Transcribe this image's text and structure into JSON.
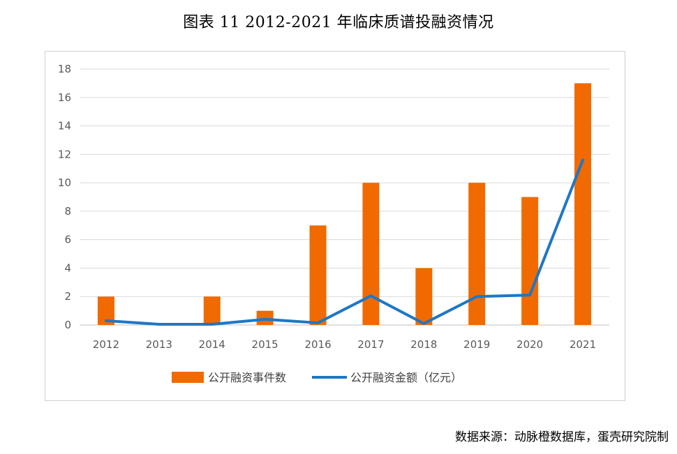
{
  "figure": {
    "title": "图表 11 2012-2021 年临床质谱投融资情况",
    "source": "数据来源：动脉橙数据库，蛋壳研究院制"
  },
  "chart_data": {
    "type": "bar",
    "categories": [
      "2012",
      "2013",
      "2014",
      "2015",
      "2016",
      "2017",
      "2018",
      "2019",
      "2020",
      "2021"
    ],
    "series": [
      {
        "name": "公开融资事件数",
        "type": "bar",
        "color": "#F06A00",
        "values": [
          2,
          0,
          2,
          1,
          7,
          10,
          4,
          10,
          9,
          17
        ]
      },
      {
        "name": "公开融资金额（亿元）",
        "type": "line",
        "color": "#1F77C4",
        "values": [
          0.3,
          0.05,
          0.05,
          0.4,
          0.15,
          2.05,
          0.1,
          2.0,
          2.1,
          11.6
        ]
      }
    ],
    "ylim": [
      0,
      18
    ],
    "yticks": [
      "0",
      "2",
      "4",
      "6",
      "8",
      "10",
      "12",
      "14",
      "16",
      "18"
    ],
    "grid": true,
    "legend_position": "bottom"
  }
}
